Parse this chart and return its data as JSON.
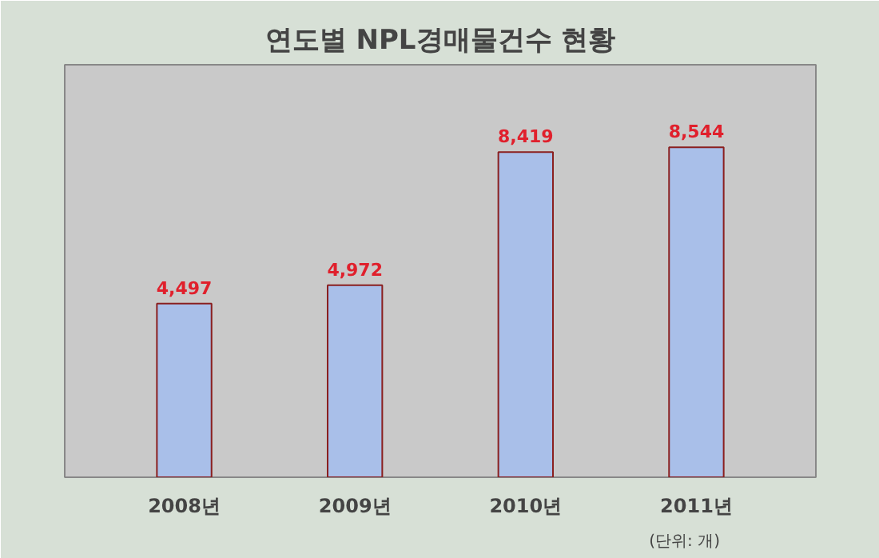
{
  "chart_data": {
    "type": "bar",
    "title": "연도별 NPL경매물건수 현황",
    "subtitle": "(단위: 개)",
    "categories": [
      "2008년",
      "2009년",
      "2010년",
      "2011년"
    ],
    "values": [
      4497,
      4972,
      8419,
      8544
    ],
    "value_labels": [
      "4,497",
      "4,972",
      "8,419",
      "8,544"
    ],
    "color": "#a9bfe9",
    "grid": false
  }
}
